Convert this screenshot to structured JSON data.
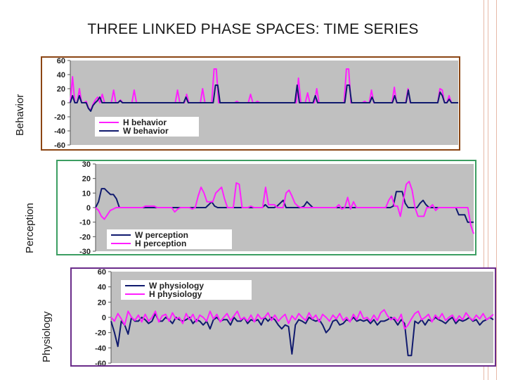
{
  "slide": {
    "title": "THREE LINKED PHASE SPACES: TIME SERIES",
    "accent_behavior": "#8b4513",
    "accent_perception": "#3c9e62",
    "accent_physiology": "#6a2c8a"
  },
  "chart_data": [
    {
      "type": "line",
      "panel_label": "Behavior",
      "ylim": [
        -60,
        60
      ],
      "yticks": [
        60,
        40,
        20,
        0,
        -20,
        -40,
        -60
      ],
      "grid": false,
      "legend": "bottom-left",
      "series": [
        {
          "name": "H behavior",
          "color": "#ff1fff",
          "values": [
            0,
            37,
            0,
            0,
            20,
            0,
            0,
            2,
            -8,
            -10,
            -2,
            4,
            8,
            0,
            12,
            0,
            0,
            0,
            0,
            18,
            0,
            0,
            4,
            0,
            0,
            0,
            0,
            0,
            18,
            0,
            0,
            0,
            0,
            0,
            0,
            0,
            0,
            0,
            0,
            0,
            0,
            0,
            0,
            0,
            0,
            0,
            0,
            18,
            0,
            0,
            0,
            12,
            0,
            0,
            0,
            0,
            0,
            0,
            20,
            0,
            0,
            0,
            0,
            48,
            48,
            0,
            0,
            0,
            0,
            0,
            0,
            0,
            0,
            2,
            0,
            0,
            0,
            0,
            0,
            12,
            0,
            0,
            2,
            0,
            0,
            0,
            0,
            0,
            0,
            0,
            0,
            0,
            0,
            0,
            0,
            0,
            0,
            0,
            0,
            0,
            35,
            0,
            0,
            0,
            14,
            0,
            0,
            0,
            20,
            0,
            0,
            0,
            0,
            0,
            0,
            0,
            0,
            0,
            0,
            0,
            0,
            48,
            48,
            0,
            0,
            0,
            0,
            0,
            0,
            2,
            0,
            0,
            18,
            0,
            0,
            0,
            0,
            0,
            0,
            0,
            0,
            0,
            22,
            0,
            0,
            0,
            0,
            0,
            20,
            0,
            0,
            0,
            0,
            0,
            0,
            0,
            0,
            0,
            0,
            0,
            0,
            0,
            20,
            18,
            0,
            0,
            10,
            0,
            0,
            0,
            0
          ]
        },
        {
          "name": "W behavior",
          "color": "#101a6e",
          "values": [
            0,
            10,
            0,
            0,
            10,
            0,
            0,
            0,
            -8,
            -12,
            -4,
            0,
            3,
            8,
            0,
            0,
            0,
            0,
            0,
            0,
            0,
            0,
            3,
            0,
            0,
            0,
            0,
            0,
            0,
            0,
            0,
            0,
            0,
            0,
            0,
            0,
            0,
            0,
            0,
            0,
            0,
            0,
            0,
            0,
            0,
            0,
            0,
            0,
            0,
            0,
            0,
            8,
            0,
            0,
            0,
            0,
            0,
            0,
            0,
            0,
            0,
            0,
            0,
            0,
            25,
            25,
            0,
            0,
            0,
            0,
            0,
            0,
            0,
            0,
            0,
            0,
            0,
            0,
            0,
            0,
            0,
            0,
            0,
            0,
            0,
            0,
            0,
            0,
            0,
            0,
            0,
            0,
            0,
            0,
            0,
            0,
            0,
            0,
            0,
            0,
            25,
            0,
            0,
            0,
            0,
            0,
            0,
            0,
            10,
            0,
            0,
            0,
            0,
            0,
            0,
            0,
            0,
            0,
            0,
            0,
            0,
            0,
            25,
            25,
            0,
            0,
            0,
            0,
            0,
            0,
            0,
            0,
            0,
            8,
            0,
            0,
            0,
            0,
            0,
            0,
            0,
            0,
            0,
            10,
            0,
            0,
            0,
            0,
            0,
            18,
            0,
            0,
            0,
            0,
            0,
            0,
            0,
            0,
            0,
            0,
            0,
            0,
            0,
            15,
            10,
            0,
            0,
            5,
            0,
            0,
            0,
            0
          ]
        }
      ]
    },
    {
      "type": "line",
      "panel_label": "Perception",
      "ylim": [
        -30,
        30
      ],
      "yticks": [
        30,
        20,
        10,
        0,
        -10,
        -20,
        -30
      ],
      "grid": false,
      "legend": "bottom-left",
      "series": [
        {
          "name": "W perception",
          "color": "#101a6e",
          "values": [
            0,
            4,
            13,
            13,
            11,
            9,
            9,
            6,
            0,
            0,
            0,
            0,
            0,
            0,
            0,
            0,
            0,
            0,
            0,
            0,
            0,
            0,
            0,
            0,
            0,
            0,
            0,
            0,
            0,
            0,
            0,
            0,
            0,
            0,
            0,
            0,
            0,
            0,
            2,
            4,
            1,
            0,
            0,
            0,
            0,
            0,
            0,
            0,
            0,
            0,
            0,
            0,
            0,
            0,
            0,
            0,
            0,
            2,
            0,
            0,
            0,
            1,
            3,
            5,
            0,
            0,
            0,
            0,
            0,
            0,
            1,
            4,
            2,
            0,
            0,
            0,
            0,
            0,
            0,
            0,
            0,
            0,
            0,
            0,
            0,
            0,
            0,
            0,
            0,
            0,
            0,
            0,
            0,
            0,
            0,
            0,
            0,
            0,
            0,
            0,
            1,
            11,
            11,
            11,
            3,
            0,
            0,
            0,
            0,
            3,
            5,
            2,
            0,
            0,
            0,
            0,
            0,
            0,
            0,
            0,
            0,
            0,
            -5,
            -5,
            -5,
            -10,
            -10,
            -10
          ]
        },
        {
          "name": "H perception",
          "color": "#ff1fff",
          "values": [
            0,
            -2,
            -6,
            -8,
            -5,
            -2,
            -1,
            0,
            0,
            0,
            0,
            0,
            0,
            0,
            0,
            0,
            0,
            1,
            1,
            1,
            1,
            0,
            0,
            0,
            0,
            0,
            0,
            -3,
            -1,
            0,
            0,
            0,
            0,
            -1,
            0,
            8,
            14,
            10,
            4,
            4,
            4,
            10,
            12,
            14,
            6,
            0,
            0,
            0,
            17,
            16,
            0,
            0,
            0,
            1,
            0,
            0,
            0,
            0,
            14,
            2,
            2,
            2,
            0,
            0,
            0,
            10,
            12,
            8,
            3,
            1,
            0,
            0,
            0,
            0,
            0,
            0,
            0,
            0,
            0,
            0,
            0,
            0,
            0,
            2,
            -1,
            0,
            7,
            -1,
            4,
            0,
            0,
            0,
            0,
            0,
            0,
            0,
            0,
            0,
            0,
            0,
            5,
            8,
            1,
            1,
            -6,
            5,
            16,
            18,
            12,
            0,
            -6,
            -6,
            -6,
            0,
            0,
            2,
            -2,
            0,
            0,
            0,
            0,
            0,
            0,
            0,
            0,
            0,
            0,
            0,
            -12,
            -18
          ]
        }
      ]
    },
    {
      "type": "line",
      "panel_label": "Physiology",
      "ylim": [
        -60,
        60
      ],
      "yticks": [
        60,
        40,
        20,
        0,
        -20,
        -40,
        -60
      ],
      "grid": false,
      "legend": "top-left",
      "series": [
        {
          "name": "W physiology",
          "color": "#101a6e",
          "values": [
            -5,
            -20,
            -38,
            -5,
            -10,
            -22,
            0,
            -5,
            -5,
            0,
            -3,
            -8,
            -5,
            5,
            -5,
            -5,
            0,
            -3,
            -8,
            0,
            -3,
            -5,
            -3,
            0,
            -8,
            -3,
            -5,
            -10,
            -5,
            -15,
            -3,
            0,
            -5,
            -3,
            -3,
            -10,
            0,
            -5,
            -5,
            0,
            -8,
            -3,
            -5,
            -3,
            -10,
            0,
            -5,
            0,
            -3,
            -10,
            -15,
            -10,
            -12,
            -48,
            -10,
            -3,
            -5,
            -8,
            0,
            -3,
            -5,
            -3,
            -10,
            -20,
            -15,
            -5,
            -3,
            -10,
            -8,
            -3,
            -5,
            0,
            -5,
            -3,
            -5,
            -3,
            -8,
            -3,
            -10,
            -5,
            -5,
            -3,
            0,
            -3,
            -10,
            -3,
            -8,
            -50,
            -50,
            -5,
            -8,
            -3,
            -10,
            -3,
            -5,
            0,
            -3,
            -5,
            -8,
            -3,
            0,
            -8,
            -3,
            -5,
            -3,
            0,
            -5,
            -3,
            -10,
            -5,
            -3,
            0,
            -3
          ]
        },
        {
          "name": "H physiology",
          "color": "#ff1fff",
          "values": [
            0,
            -5,
            5,
            -2,
            -10,
            8,
            0,
            -4,
            3,
            -6,
            4,
            -5,
            0,
            8,
            -6,
            2,
            4,
            -5,
            6,
            -2,
            0,
            -8,
            5,
            -3,
            4,
            -6,
            3,
            0,
            -5,
            8,
            -2,
            4,
            -6,
            0,
            5,
            -4,
            2,
            8,
            -3,
            0,
            -5,
            3,
            -6,
            4,
            -2,
            0,
            6,
            -4,
            3,
            -5,
            0,
            4,
            -8,
            2,
            -3,
            5,
            0,
            -4,
            6,
            -2,
            3,
            -6,
            4,
            0,
            -5,
            3,
            -2,
            5,
            -4,
            0,
            -6,
            4,
            -3,
            8,
            -2,
            0,
            -5,
            3,
            -4,
            6,
            10,
            2,
            -3,
            0,
            -5,
            4,
            -15,
            -10,
            -2,
            5,
            8,
            -3,
            0,
            4,
            -6,
            3,
            -2,
            5,
            -4,
            0,
            3,
            -5,
            2,
            -3,
            6,
            0,
            -4,
            3,
            -2,
            5,
            -3,
            0,
            4
          ]
        }
      ]
    }
  ]
}
